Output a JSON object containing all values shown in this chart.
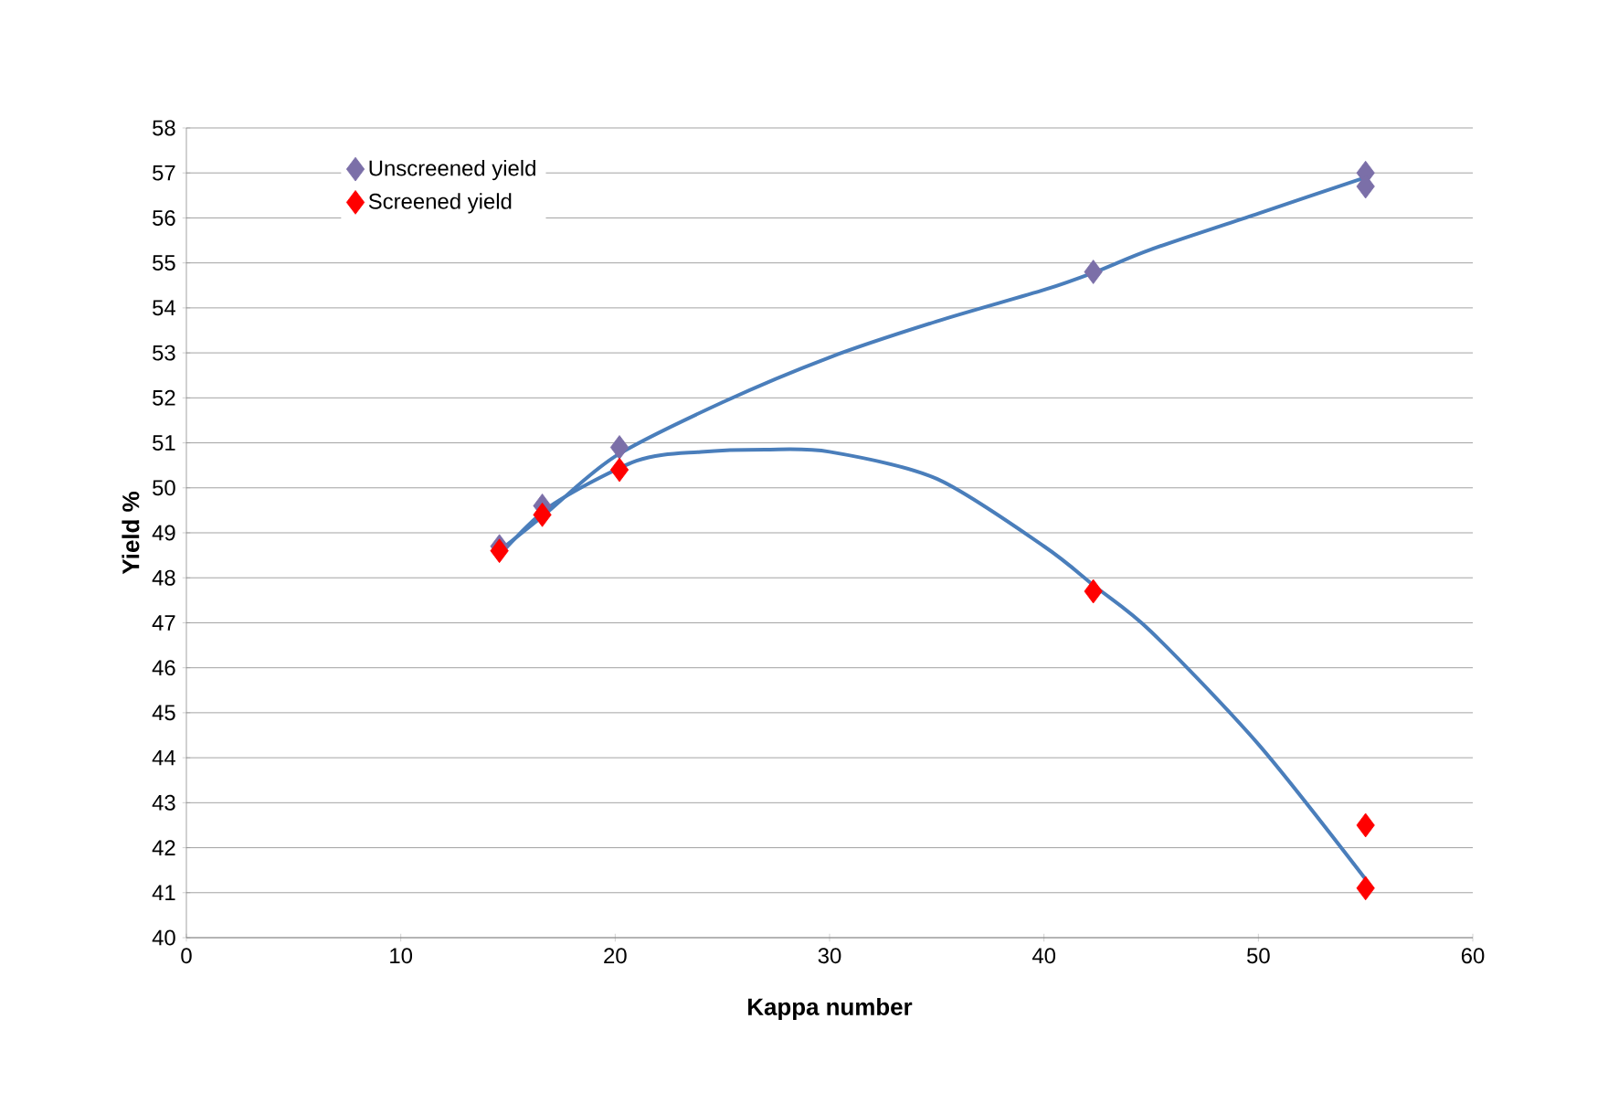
{
  "chart_data": {
    "type": "scatter",
    "xlabel": "Kappa number",
    "ylabel": "Yield %",
    "xlim": [
      0,
      60
    ],
    "ylim": [
      40,
      58
    ],
    "xticks": [
      0,
      10,
      20,
      30,
      40,
      50,
      60
    ],
    "yticks": [
      40,
      41,
      42,
      43,
      44,
      45,
      46,
      47,
      48,
      49,
      50,
      51,
      52,
      53,
      54,
      55,
      56,
      57,
      58
    ],
    "grid": "y",
    "legend": "top left",
    "series": [
      {
        "name": "Unscreened yield",
        "marker": "diamond",
        "color": "#7b6fa8",
        "x": [
          14.6,
          16.6,
          20.2,
          42.3,
          55.0,
          55.0
        ],
        "values": [
          48.7,
          49.6,
          50.9,
          54.8,
          57.0,
          56.7
        ]
      },
      {
        "name": "Screened yield",
        "marker": "diamond",
        "color": "#ff0000",
        "x": [
          14.6,
          16.6,
          20.2,
          42.3,
          55.0,
          55.0
        ],
        "values": [
          48.6,
          49.4,
          50.4,
          47.7,
          42.5,
          41.1
        ]
      },
      {
        "type": "line",
        "color": "#4a7ebb",
        "x": [
          14.6,
          16.7,
          20,
          25,
          30,
          35,
          40,
          42.4,
          45,
          50,
          55
        ],
        "values": [
          48.6,
          49.4,
          50.7,
          51.9,
          52.9,
          53.7,
          54.4,
          54.8,
          55.3,
          56.1,
          56.9
        ]
      },
      {
        "type": "line",
        "color": "#4a7ebb",
        "x": [
          14.6,
          17,
          21,
          24,
          27,
          30,
          35,
          40,
          42.4,
          45,
          50,
          55
        ],
        "values": [
          48.5,
          49.6,
          50.6,
          50.8,
          50.85,
          50.8,
          50.2,
          48.7,
          47.8,
          46.8,
          44.3,
          41.3
        ]
      }
    ]
  }
}
